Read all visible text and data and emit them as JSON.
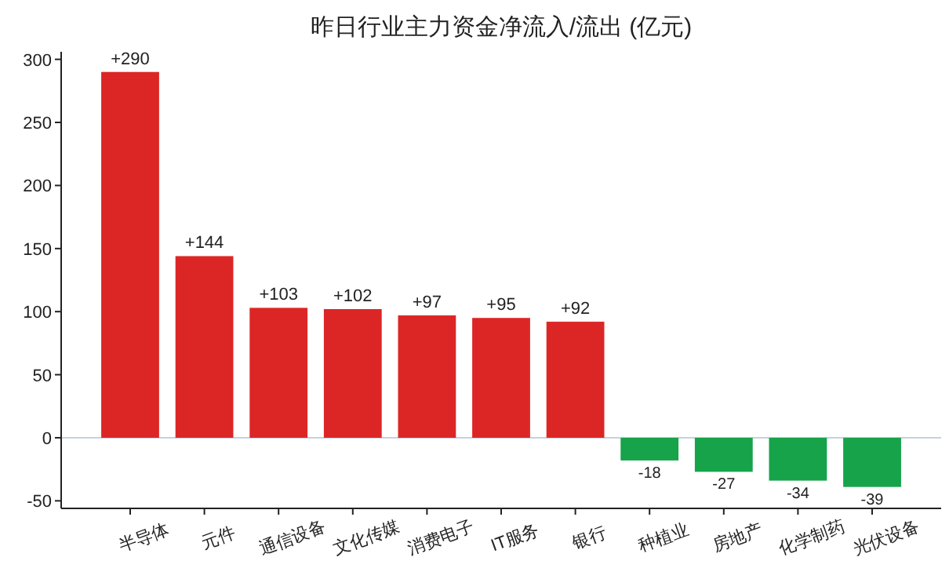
{
  "chart_data": {
    "type": "bar",
    "title": "昨日行业主力资金净流入/流出 (亿元)",
    "categories": [
      "半导体",
      "元件",
      "通信设备",
      "文化传媒",
      "消费电子",
      "IT服务",
      "银行",
      "种植业",
      "房地产",
      "化学制药",
      "光伏设备"
    ],
    "values": [
      290,
      144,
      103,
      102,
      97,
      95,
      92,
      -18,
      -27,
      -34,
      -39
    ],
    "colors": [
      "#dc2626",
      "#dc2626",
      "#dc2626",
      "#dc2626",
      "#dc2626",
      "#dc2626",
      "#dc2626",
      "#16a34a",
      "#16a34a",
      "#16a34a",
      "#16a34a"
    ],
    "value_labels": [
      "+290",
      "+144",
      "+103",
      "+102",
      "+97",
      "+95",
      "+92",
      "-18",
      "-27",
      "-34",
      "-39"
    ],
    "ylim": [
      -56,
      306
    ],
    "yticks": [
      -50,
      0,
      50,
      100,
      150,
      200,
      250,
      300
    ],
    "ref_lines": [
      {
        "axis": "y",
        "value": 0,
        "color": "#c8d0e0",
        "line_style": "solid"
      }
    ],
    "grid": false
  }
}
